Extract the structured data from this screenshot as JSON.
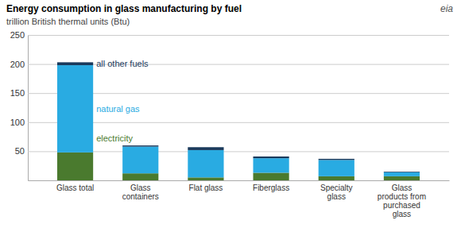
{
  "chart_data": {
    "type": "bar",
    "stacked": true,
    "title": "Energy consumption in glass manufacturing by fuel",
    "subtitle": "trillion British thermal units (Btu)",
    "annotations": [
      "eia"
    ],
    "categories": [
      "Glass total",
      "Glass\ncontainers",
      "Flat glass",
      "Fiberglass",
      "Specialty\nglass",
      "Glass\nproducts from\npurchased\nglass"
    ],
    "series": [
      {
        "name": "electricity",
        "color": "#4a7a2e",
        "values": [
          48,
          12,
          5,
          13,
          7,
          7
        ]
      },
      {
        "name": "natural gas",
        "color": "#29abe2",
        "values": [
          150,
          46,
          47,
          25,
          28,
          7
        ]
      },
      {
        "name": "all other fuels",
        "color": "#1a3a5c",
        "values": [
          5,
          2,
          5,
          3,
          2,
          1
        ]
      }
    ],
    "ylim": [
      0,
      250
    ],
    "yticks": [
      50,
      100,
      150,
      200,
      250
    ],
    "grid": true
  }
}
